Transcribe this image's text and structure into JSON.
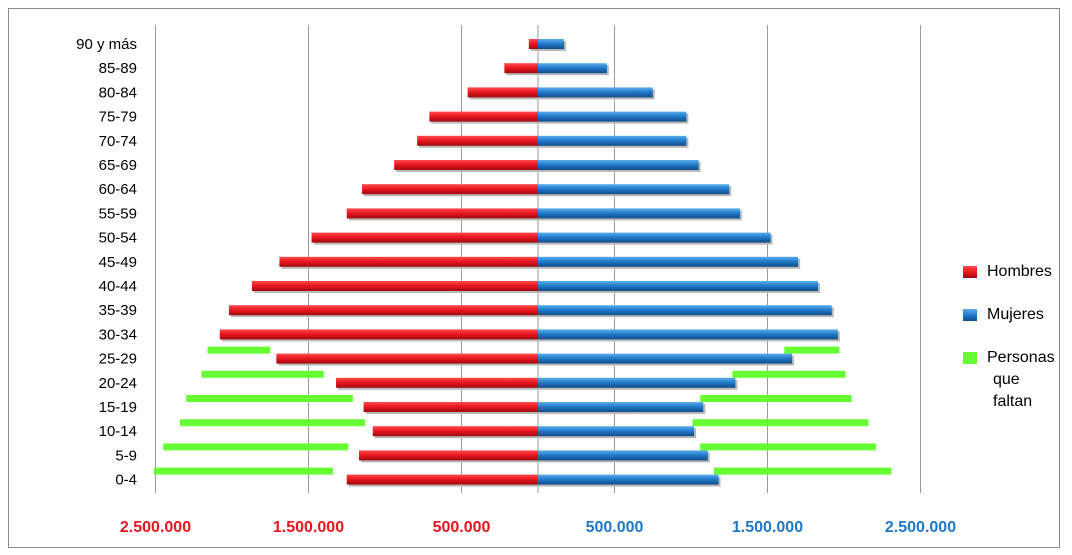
{
  "chart_data": {
    "type": "bar",
    "orientation": "horizontal",
    "subtype": "population-pyramid",
    "categories": [
      "0-4",
      "5-9",
      "10-14",
      "15-19",
      "20-24",
      "25-29",
      "30-34",
      "35-39",
      "40-44",
      "45-49",
      "50-54",
      "55-59",
      "60-64",
      "65-69",
      "70-74",
      "75-79",
      "80-84",
      "85-89",
      "90 y más"
    ],
    "series": [
      {
        "name": "Hombres",
        "color": "#e8141e",
        "side": "left",
        "values": [
          1250000,
          1170000,
          1080000,
          1140000,
          1320000,
          1710000,
          2080000,
          2020000,
          1870000,
          1690000,
          1480000,
          1250000,
          1150000,
          940000,
          790000,
          710000,
          460000,
          220000,
          60000
        ]
      },
      {
        "name": "Mujeres",
        "color": "#1f77c8",
        "side": "right",
        "values": [
          1180000,
          1110000,
          1020000,
          1080000,
          1290000,
          1660000,
          1960000,
          1920000,
          1830000,
          1700000,
          1520000,
          1320000,
          1250000,
          1050000,
          970000,
          970000,
          750000,
          450000,
          170000
        ]
      },
      {
        "name": "Personas que faltan",
        "name_lines": [
          "Personas",
          "que faltan"
        ],
        "color": "#66ff33",
        "left_ranges": [
          [
            1340000,
            2510000
          ],
          [
            1240000,
            2450000
          ],
          [
            1130000,
            2340000
          ],
          [
            1210000,
            2300000
          ],
          [
            1400000,
            2200000
          ],
          [
            1750000,
            2160000
          ],
          null,
          null,
          null,
          null,
          null,
          null,
          null,
          null,
          null,
          null,
          null,
          null,
          null
        ],
        "right_ranges": [
          [
            1150000,
            2310000
          ],
          [
            1060000,
            2210000
          ],
          [
            1010000,
            2160000
          ],
          [
            1060000,
            2050000
          ],
          [
            1270000,
            2010000
          ],
          [
            1610000,
            1970000
          ],
          null,
          null,
          null,
          null,
          null,
          null,
          null,
          null,
          null,
          null,
          null,
          null,
          null
        ]
      }
    ],
    "x_ticks": [
      {
        "value": -2500000,
        "label": "2.500.000"
      },
      {
        "value": -1500000,
        "label": "1.500.000"
      },
      {
        "value": -500000,
        "label": "500.000"
      },
      {
        "value": 500000,
        "label": "500.000"
      },
      {
        "value": 1500000,
        "label": "1.500.000"
      },
      {
        "value": 2500000,
        "label": "2.500.000"
      }
    ],
    "tick_label_colors": {
      "left": "#e8141e",
      "right": "#1f77c8"
    },
    "xlim": [
      -2500000,
      2500000
    ],
    "grid": true,
    "legend_position": "right",
    "title": "",
    "xlabel": "",
    "ylabel": ""
  }
}
